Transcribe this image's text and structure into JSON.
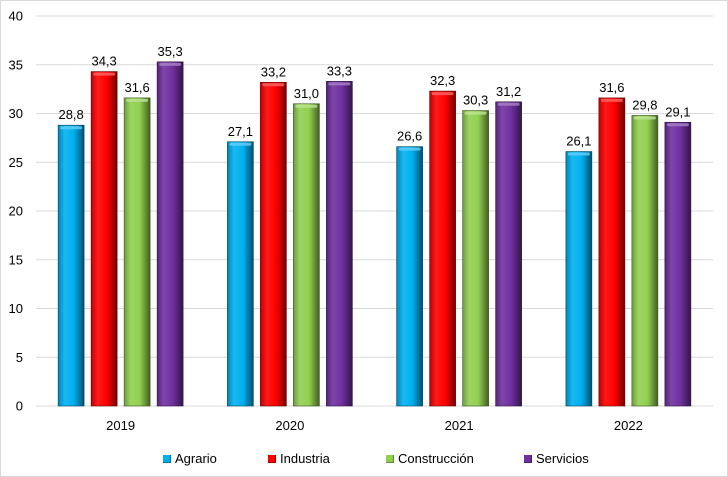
{
  "chart_data": {
    "type": "bar",
    "title": "",
    "xlabel": "",
    "ylabel": "",
    "categories": [
      "2019",
      "2020",
      "2021",
      "2022"
    ],
    "series": [
      {
        "name": "Agrario",
        "color": "#00b0f0",
        "values": [
          28.8,
          27.1,
          26.6,
          26.1
        ],
        "labels": [
          "28,8",
          "27,1",
          "26,6",
          "26,1"
        ]
      },
      {
        "name": "Industria",
        "color": "#ff0000",
        "values": [
          34.3,
          33.2,
          32.3,
          31.6
        ],
        "labels": [
          "34,3",
          "33,2",
          "32,3",
          "31,6"
        ]
      },
      {
        "name": "Construcción",
        "color": "#92d050",
        "values": [
          31.6,
          31.0,
          30.3,
          29.8
        ],
        "labels": [
          "31,6",
          "31,0",
          "30,3",
          "29,8"
        ]
      },
      {
        "name": "Servicios",
        "color": "#7030a0",
        "values": [
          35.3,
          33.3,
          31.2,
          29.1
        ],
        "labels": [
          "35,3",
          "33,3",
          "31,2",
          "29,1"
        ]
      }
    ],
    "ylim": [
      0,
      40
    ],
    "yticks": [
      0,
      5,
      10,
      15,
      20,
      25,
      30,
      35,
      40
    ],
    "grid": true,
    "legend_position": "bottom"
  }
}
